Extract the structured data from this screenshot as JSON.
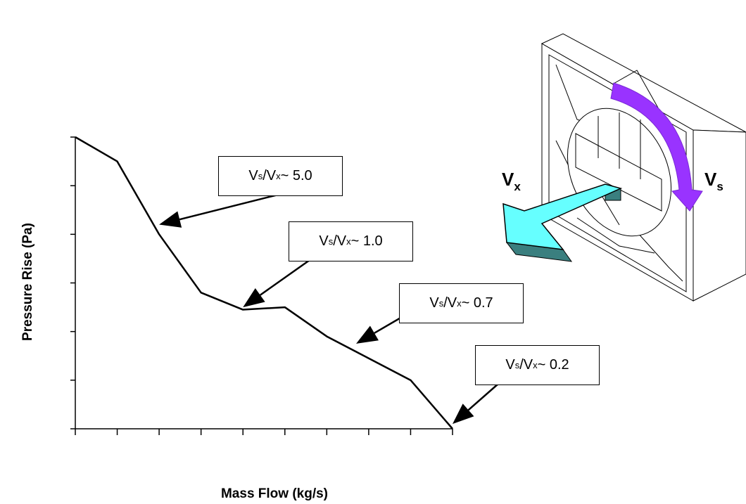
{
  "chart_data": {
    "type": "line",
    "xlabel": "Mass Flow (kg/s)",
    "ylabel": "Pressure Rise (Pa)",
    "x_ticks": 10,
    "y_ticks": 7,
    "xlim": [
      0,
      9
    ],
    "ylim": [
      0,
      6
    ],
    "series": [
      {
        "values": [
          {
            "x": 0.0,
            "y": 6.0
          },
          {
            "x": 1.0,
            "y": 5.5
          },
          {
            "x": 2.0,
            "y": 4.0
          },
          {
            "x": 3.0,
            "y": 2.8
          },
          {
            "x": 4.0,
            "y": 2.45
          },
          {
            "x": 5.0,
            "y": 2.5
          },
          {
            "x": 6.0,
            "y": 1.9
          },
          {
            "x": 7.0,
            "y": 1.45
          },
          {
            "x": 8.0,
            "y": 1.0
          },
          {
            "x": 9.0,
            "y": 0.0
          }
        ]
      }
    ],
    "annotations": [
      {
        "ratio": "5.0",
        "x": 2.0,
        "y": 4.2
      },
      {
        "ratio": "1.0",
        "x": 4.0,
        "y": 2.5
      },
      {
        "ratio": "0.7",
        "x": 6.7,
        "y": 1.75
      },
      {
        "ratio": "0.2",
        "x": 9.0,
        "y": 0.1
      }
    ],
    "grid": false
  },
  "annotation_text": {
    "v": "V",
    "s": "s",
    "x": "x",
    "prefix": "/",
    "approx": " ~ "
  },
  "diagram": {
    "vx_label": "V",
    "vx_sub": "x",
    "vs_label": "V",
    "vs_sub": "s",
    "colors": {
      "axial_arrow_top": "#66ffff",
      "axial_arrow_side": "#3a7f7f",
      "swirl_arrow": "#9933ff",
      "line": "#000000"
    }
  }
}
